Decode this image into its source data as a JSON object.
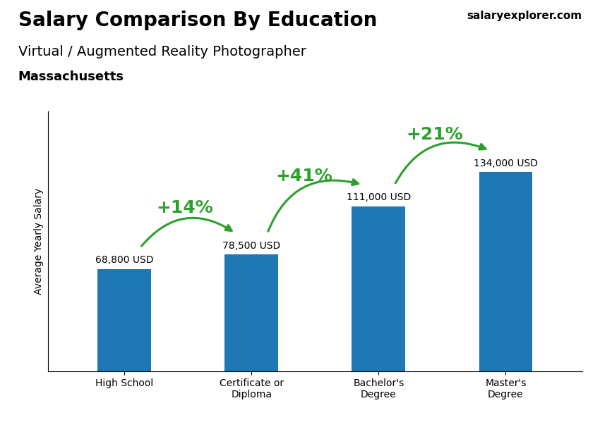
{
  "chart_data": {
    "type": "bar",
    "title": "Salary Comparison By Education",
    "subtitle": "Virtual / Augmented Reality Photographer",
    "annotations": [
      "Massachusetts",
      "salaryexplorer.com"
    ],
    "ylabel": "Average Yearly Salary",
    "categories": [
      "High School",
      "Certificate or\nDiploma",
      "Bachelor's\nDegree",
      "Master's\nDegree"
    ],
    "values": [
      68800,
      78500,
      111000,
      134000
    ],
    "value_labels": [
      "68,800 USD",
      "78,500 USD",
      "111,000 USD",
      "134,000 USD"
    ],
    "data_labels": true,
    "pct_changes": [
      "+14%",
      "+41%",
      "+21%"
    ],
    "ylim": [
      0,
      175000
    ],
    "yticks": [],
    "tick_labels": "x",
    "grid": false
  }
}
